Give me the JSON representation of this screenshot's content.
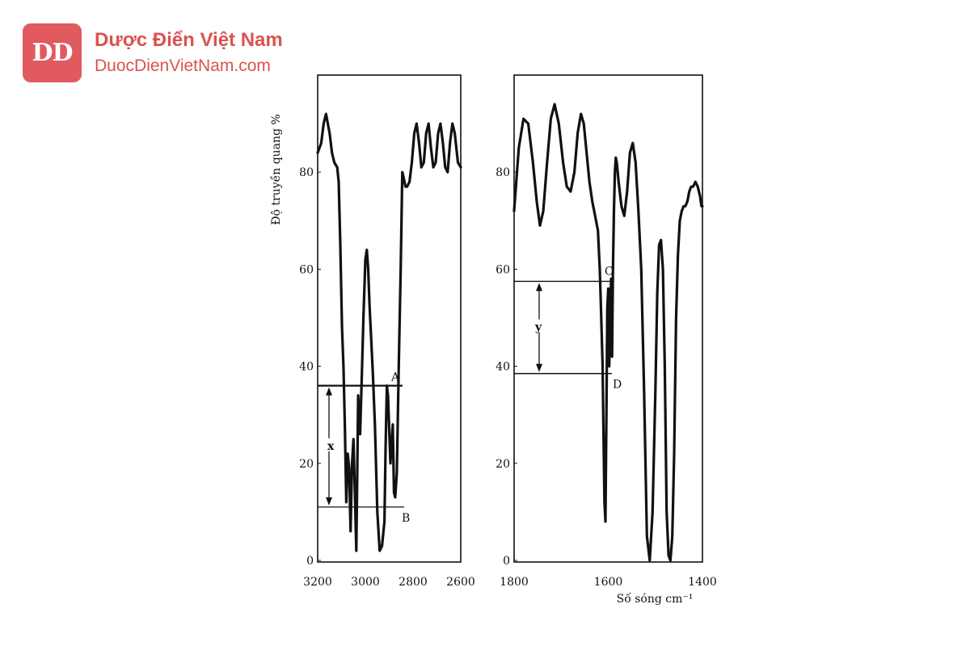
{
  "logo": {
    "mark": "DD",
    "name": "Dược Điển Việt Nam",
    "url": "DuocDienVietNam.com"
  },
  "colors": {
    "brand": "#e05a5f",
    "line": "#111111"
  },
  "chart_data": [
    {
      "type": "line",
      "ylabel": "Độ truyền quang %",
      "xlim": [
        3200,
        2600
      ],
      "ylim": [
        0,
        100
      ],
      "xticks": [
        3200,
        3000,
        2800,
        2600
      ],
      "yticks": [
        0,
        20,
        40,
        60,
        80
      ],
      "series": [
        {
          "x": [
            3200,
            3185,
            3175,
            3165,
            3150,
            3140,
            3130,
            3118,
            3112,
            3105,
            3098,
            3092,
            3086,
            3080,
            3074,
            3068,
            3062,
            3056,
            3050,
            3044,
            3038,
            3030,
            3022,
            3015,
            3008,
            3000,
            2994,
            2988,
            2982,
            2975,
            2968,
            2960,
            2950,
            2940,
            2930,
            2920,
            2915,
            2910,
            2905,
            2895,
            2885,
            2880,
            2875,
            2868,
            2860,
            2852,
            2845,
            2840,
            2832,
            2825,
            2815,
            2805,
            2795,
            2785,
            2775,
            2765,
            2755,
            2745,
            2735,
            2725,
            2715,
            2705,
            2695,
            2685,
            2675,
            2665,
            2655,
            2645,
            2635,
            2625,
            2612,
            2600
          ],
          "y": [
            84,
            86,
            90,
            92,
            88,
            84,
            82,
            81,
            78,
            65,
            48,
            40,
            28,
            12,
            22,
            19,
            6,
            20,
            25,
            14,
            2,
            34,
            26,
            38,
            50,
            62,
            64,
            60,
            52,
            45,
            38,
            28,
            10,
            2,
            3,
            8,
            24,
            36,
            34,
            20,
            28,
            14,
            13,
            18,
            40,
            60,
            80,
            79,
            77,
            77,
            78,
            82,
            88,
            90,
            86,
            81,
            82,
            88,
            90,
            85,
            81,
            82,
            88,
            90,
            86,
            81,
            80,
            86,
            90,
            88,
            82,
            81
          ]
        }
      ],
      "annotations": [
        {
          "label": "A",
          "y": 36
        },
        {
          "label": "B",
          "y": 11
        },
        {
          "label": "x"
        }
      ]
    },
    {
      "type": "line",
      "xlabel": "Số sóng cm⁻¹",
      "xlim": [
        1800,
        1400
      ],
      "ylim": [
        0,
        100
      ],
      "xticks": [
        1800,
        1600,
        1400
      ],
      "yticks": [
        0,
        20,
        40,
        60,
        80
      ],
      "series": [
        {
          "x": [
            1800,
            1790,
            1780,
            1770,
            1760,
            1752,
            1745,
            1738,
            1730,
            1722,
            1714,
            1705,
            1696,
            1688,
            1680,
            1672,
            1665,
            1658,
            1652,
            1646,
            1640,
            1634,
            1628,
            1622,
            1618,
            1615,
            1612,
            1610,
            1608,
            1606,
            1604,
            1602,
            1600,
            1598,
            1596,
            1594,
            1592,
            1590,
            1588,
            1586,
            1584,
            1582,
            1578,
            1572,
            1566,
            1560,
            1554,
            1548,
            1542,
            1536,
            1530,
            1524,
            1518,
            1512,
            1506,
            1500,
            1496,
            1492,
            1488,
            1484,
            1480,
            1476,
            1472,
            1468,
            1464,
            1460,
            1456,
            1452,
            1448,
            1444,
            1440,
            1436,
            1432,
            1428,
            1424,
            1420,
            1415,
            1410,
            1405,
            1402,
            1400
          ],
          "y": [
            72,
            85,
            91,
            90,
            82,
            74,
            69,
            72,
            82,
            91,
            94,
            90,
            82,
            77,
            76,
            80,
            88,
            92,
            90,
            84,
            78,
            74,
            71,
            68,
            60,
            50,
            40,
            25,
            12,
            8,
            30,
            52,
            56,
            40,
            50,
            58,
            42,
            60,
            72,
            80,
            83,
            82,
            78,
            73,
            71,
            76,
            84,
            86,
            82,
            72,
            60,
            35,
            5,
            0,
            10,
            35,
            55,
            65,
            66,
            60,
            40,
            10,
            1,
            0,
            5,
            22,
            50,
            63,
            70,
            72,
            73,
            73,
            74,
            76,
            77,
            77,
            78,
            77,
            75,
            73,
            73
          ]
        }
      ],
      "annotations": [
        {
          "label": "C",
          "y": 57.5
        },
        {
          "label": "D",
          "y": 38.5
        },
        {
          "label": "y"
        }
      ]
    }
  ]
}
